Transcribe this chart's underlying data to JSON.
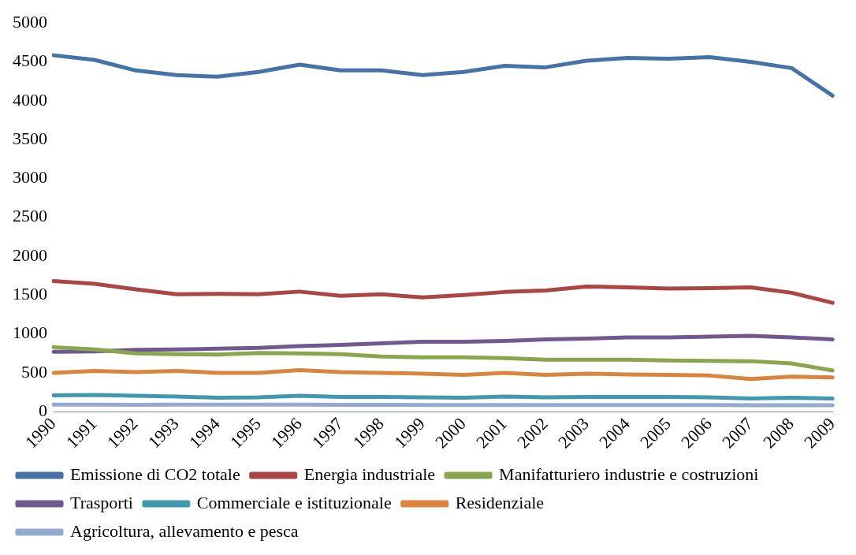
{
  "chart_data": {
    "type": "line",
    "categories": [
      "1990",
      "1991",
      "1992",
      "1993",
      "1994",
      "1995",
      "1996",
      "1997",
      "1998",
      "1999",
      "2000",
      "2001",
      "2002",
      "2003",
      "2004",
      "2005",
      "2006",
      "2007",
      "2008",
      "2009"
    ],
    "series": [
      {
        "name": "Emissione di CO2 totale",
        "color": "#4572a7",
        "values": [
          4585,
          4525,
          4390,
          4330,
          4310,
          4370,
          4465,
          4390,
          4390,
          4330,
          4370,
          4450,
          4430,
          4515,
          4550,
          4540,
          4560,
          4500,
          4420,
          4065
        ]
      },
      {
        "name": "Energia industriale",
        "color": "#aa4643",
        "values": [
          1680,
          1645,
          1575,
          1510,
          1515,
          1510,
          1545,
          1490,
          1510,
          1470,
          1500,
          1540,
          1560,
          1610,
          1600,
          1585,
          1590,
          1600,
          1530,
          1400
        ]
      },
      {
        "name": "Manifatturiero industrie e costruzioni",
        "color": "#89a54e",
        "values": [
          830,
          800,
          750,
          740,
          735,
          755,
          750,
          740,
          710,
          700,
          700,
          690,
          670,
          670,
          670,
          660,
          655,
          650,
          620,
          530
        ]
      },
      {
        "name": "Trasporti",
        "color": "#71588f",
        "values": [
          770,
          775,
          795,
          800,
          810,
          820,
          845,
          860,
          880,
          900,
          900,
          910,
          930,
          940,
          955,
          955,
          965,
          975,
          955,
          930
        ]
      },
      {
        "name": "Commerciale e istituzionale",
        "color": "#4198af",
        "values": [
          210,
          215,
          205,
          195,
          180,
          185,
          205,
          190,
          190,
          185,
          180,
          195,
          185,
          190,
          190,
          190,
          185,
          170,
          180,
          170
        ]
      },
      {
        "name": "Residenziale",
        "color": "#db843d",
        "values": [
          500,
          525,
          510,
          525,
          500,
          500,
          535,
          510,
          500,
          490,
          475,
          500,
          475,
          490,
          480,
          475,
          465,
          420,
          450,
          440
        ]
      },
      {
        "name": "Agricoltura, allevamento e pesca",
        "color": "#93a9cf",
        "values": [
          90,
          90,
          88,
          90,
          90,
          90,
          90,
          88,
          88,
          87,
          87,
          87,
          86,
          86,
          86,
          85,
          85,
          84,
          84,
          83
        ]
      }
    ],
    "ylim": [
      0,
      5000
    ],
    "yticks": [
      0,
      500,
      1000,
      1500,
      2000,
      2500,
      3000,
      3500,
      4000,
      4500,
      5000
    ],
    "grid": false,
    "legend": "bottom",
    "marker": "none",
    "line_style": "solid"
  }
}
